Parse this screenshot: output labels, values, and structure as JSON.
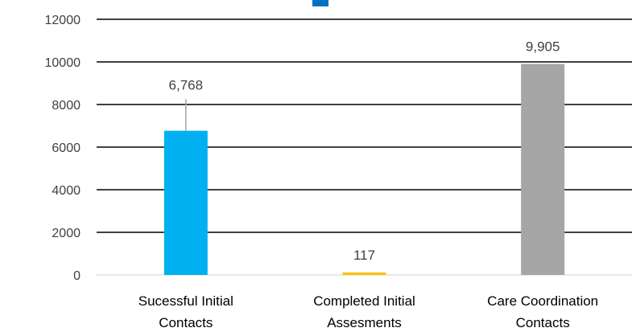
{
  "chart_data": {
    "type": "bar",
    "title": "",
    "xlabel": "",
    "ylabel": "",
    "ylim": [
      0,
      12000
    ],
    "yticks": [
      0,
      2000,
      4000,
      6000,
      8000,
      10000,
      12000
    ],
    "ytick_labels": [
      "0",
      "2000",
      "4000",
      "6000",
      "8000",
      "10000",
      "12000"
    ],
    "grid": true,
    "legend": "none",
    "categories": [
      [
        "Sucessful Initial",
        "Contacts"
      ],
      [
        "Completed Initial",
        "Assesments"
      ],
      [
        "Care Coordination",
        "Contacts"
      ]
    ],
    "values": [
      6768,
      117,
      9905
    ],
    "data_labels": [
      "6,768",
      "117",
      "9,905"
    ],
    "colors": [
      "#00b0f0",
      "#ffc000",
      "#a6a6a6"
    ],
    "error_bar": {
      "category_index": 0,
      "upper": 8250
    },
    "title_fragment_color": "#0070c0"
  }
}
